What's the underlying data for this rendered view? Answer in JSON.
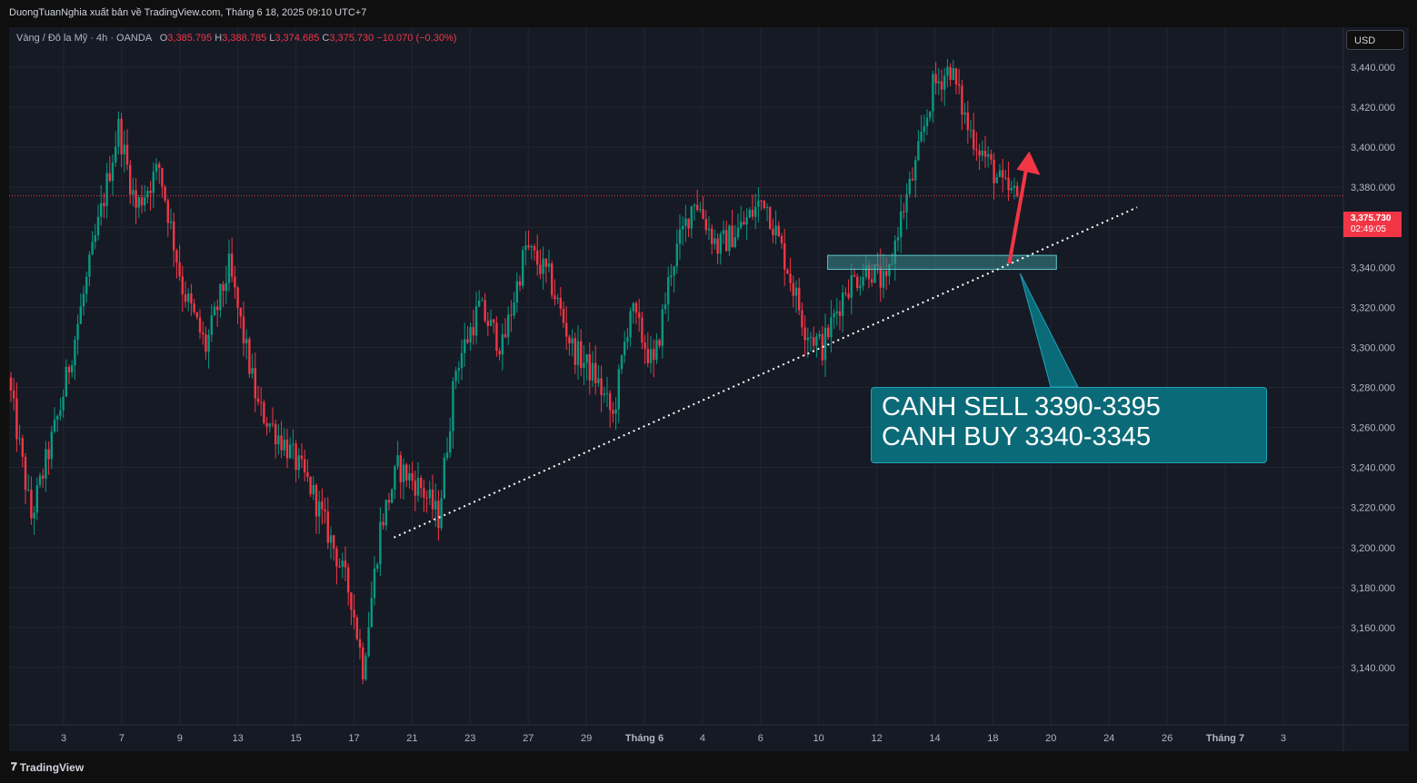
{
  "header": {
    "publisher": "DuongTuanNghia xuất bản về TradingView.com, Tháng 6 18, 2025 09:10 UTC+7"
  },
  "legend": {
    "symbol": "Vàng / Đô la Mỹ · 4h · OANDA",
    "open_label": "O",
    "open": "3,385.795",
    "high_label": "H",
    "high": "3,388.785",
    "low_label": "L",
    "low": "3,374.685",
    "close_label": "C",
    "close": "3,375.730",
    "change": "−10.070 (−0.30%)"
  },
  "currency_button": "USD",
  "last_price": {
    "price": "3,375.730",
    "countdown": "02:49:05"
  },
  "annotation": {
    "line1": "CANH SELL 3390-3395",
    "line2": "CANH BUY 3340-3345"
  },
  "brand": "TradingView",
  "colors": {
    "up": "#089981",
    "down": "#f23645",
    "background": "#161a25",
    "grid": "#232632",
    "zone": "#3a8b8f",
    "annotation": "#0b6a78"
  },
  "chart_data": {
    "type": "candlestick",
    "title": "",
    "x_ticks": [
      "3",
      "7",
      "9",
      "13",
      "15",
      "17",
      "21",
      "23",
      "27",
      "29",
      "Tháng 6",
      "4",
      "6",
      "10",
      "12",
      "14",
      "18",
      "20",
      "24",
      "26",
      "Tháng 7",
      "3"
    ],
    "y_ticks": [
      3140,
      3160,
      3180,
      3200,
      3220,
      3240,
      3260,
      3280,
      3300,
      3320,
      3340,
      3360,
      3380,
      3400,
      3420,
      3440
    ],
    "ylim": [
      3115,
      3460
    ],
    "last_price": 3375.73,
    "anchors": [
      [
        0,
        3285
      ],
      [
        8,
        3215
      ],
      [
        18,
        3270
      ],
      [
        28,
        3340
      ],
      [
        38,
        3410
      ],
      [
        44,
        3370
      ],
      [
        52,
        3390
      ],
      [
        60,
        3330
      ],
      [
        68,
        3300
      ],
      [
        76,
        3340
      ],
      [
        86,
        3270
      ],
      [
        96,
        3250
      ],
      [
        104,
        3230
      ],
      [
        112,
        3200
      ],
      [
        118,
        3175
      ],
      [
        122,
        3140
      ],
      [
        128,
        3210
      ],
      [
        134,
        3240
      ],
      [
        142,
        3230
      ],
      [
        148,
        3215
      ],
      [
        154,
        3290
      ],
      [
        162,
        3320
      ],
      [
        170,
        3300
      ],
      [
        178,
        3350
      ],
      [
        186,
        3335
      ],
      [
        194,
        3300
      ],
      [
        202,
        3285
      ],
      [
        208,
        3265
      ],
      [
        214,
        3320
      ],
      [
        222,
        3290
      ],
      [
        228,
        3340
      ],
      [
        236,
        3375
      ],
      [
        244,
        3350
      ],
      [
        252,
        3360
      ],
      [
        260,
        3375
      ],
      [
        268,
        3340
      ],
      [
        274,
        3310
      ],
      [
        280,
        3300
      ],
      [
        288,
        3330
      ],
      [
        296,
        3340
      ],
      [
        302,
        3330
      ],
      [
        306,
        3360
      ],
      [
        312,
        3390
      ],
      [
        318,
        3430
      ],
      [
        324,
        3440
      ],
      [
        330,
        3410
      ],
      [
        336,
        3395
      ],
      [
        342,
        3380
      ],
      [
        346,
        3375.73
      ]
    ],
    "candle_count": 347,
    "trendline": {
      "from": [
        3,
        "21",
        3205
      ],
      "to": [
        24,
        "24",
        3370
      ],
      "style": "dotted"
    },
    "zone": {
      "from_x": "12",
      "to_x": "20",
      "low": 3339,
      "high": 3346
    },
    "arrows": [
      {
        "from_x": "18",
        "from_y": 3342,
        "to_x": "19.5",
        "to_y": 3393,
        "color": "red"
      }
    ]
  }
}
